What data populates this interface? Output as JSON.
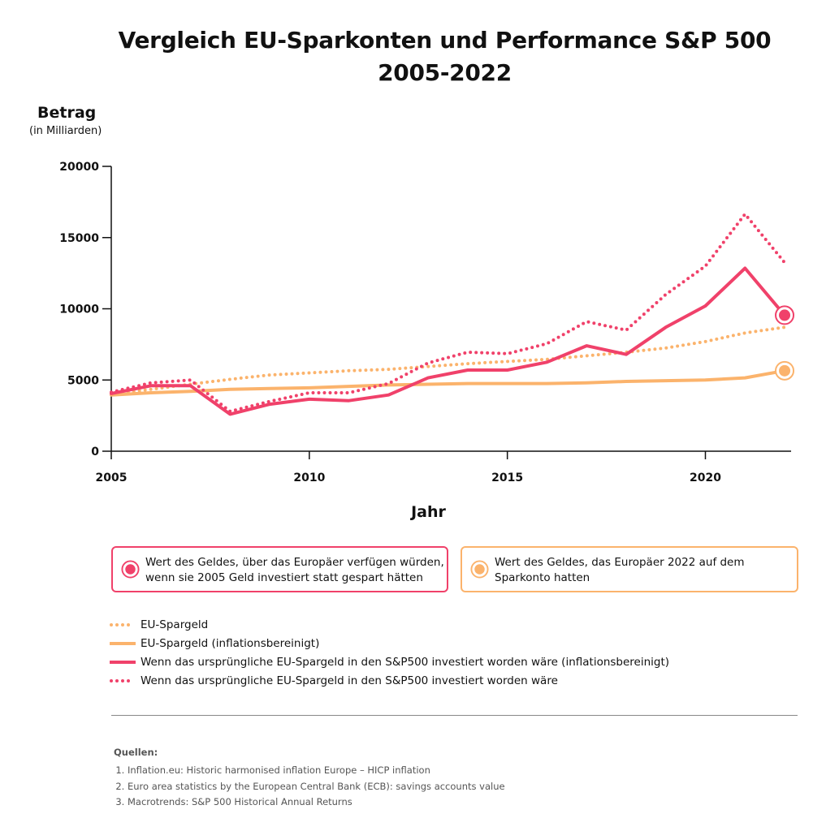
{
  "title_line1": "Vergleich EU-Sparkonten und Performance S&P 500",
  "title_line2": "2005-2022",
  "ylabel": "Betrag",
  "ylabel_sub": "(in Milliarden)",
  "xlabel": "Jahr",
  "colors": {
    "pink": "#f0416a",
    "orange": "#fbb36c"
  },
  "callouts": {
    "pink": "Wert des Geldes, über das Europäer verfügen würden, wenn sie 2005 Geld investiert statt gespart hätten",
    "orange": "Wert des Geldes, das Europäer 2022 auf dem Sparkonto hatten"
  },
  "legend": [
    "EU-Spargeld",
    "EU-Spargeld (inflationsbereinigt)",
    "Wenn das ursprüngliche EU-Spargeld in den S&P500 investiert worden wäre (inflationsbereinigt)",
    "Wenn das ursprüngliche EU-Spargeld in den S&P500 investiert worden wäre"
  ],
  "sources": {
    "heading": "Quellen:",
    "items": [
      "Inflation.eu: Historic harmonised inflation Europe – HICP inflation",
      "Euro area statistics by the European Central Bank (ECB): savings accounts value",
      "Macrotrends: S&P 500 Historical Annual Returns"
    ]
  },
  "chart_data": {
    "type": "line",
    "x": [
      2005,
      2006,
      2007,
      2008,
      2009,
      2010,
      2011,
      2012,
      2013,
      2014,
      2015,
      2016,
      2017,
      2018,
      2019,
      2020,
      2021,
      2022
    ],
    "xlim": [
      2005,
      2022
    ],
    "ylim": [
      0,
      20000
    ],
    "xticks": [
      2005,
      2010,
      2015,
      2020
    ],
    "yticks": [
      0,
      5000,
      10000,
      15000,
      20000
    ],
    "series": [
      {
        "name": "EU-Spargeld",
        "color": "#fbb36c",
        "style": "dotted",
        "values": [
          4000,
          4350,
          4700,
          5050,
          5350,
          5500,
          5650,
          5750,
          5950,
          6150,
          6300,
          6450,
          6700,
          6950,
          7250,
          7700,
          8300,
          8700
        ]
      },
      {
        "name": "EU-Spargeld (inflationsbereinigt)",
        "color": "#fbb36c",
        "style": "solid",
        "values": [
          3950,
          4100,
          4200,
          4350,
          4400,
          4450,
          4550,
          4650,
          4700,
          4750,
          4750,
          4750,
          4800,
          4900,
          4950,
          5000,
          5150,
          5650
        ]
      },
      {
        "name": "Wenn das ursprüngliche EU-Spargeld in den S&P500 investiert worden wäre (inflationsbereinigt)",
        "color": "#f0416a",
        "style": "solid",
        "values": [
          4050,
          4600,
          4600,
          2600,
          3300,
          3650,
          3550,
          3950,
          5150,
          5700,
          5700,
          6250,
          7400,
          6800,
          8700,
          10200,
          12850,
          9550
        ]
      },
      {
        "name": "Wenn das ursprüngliche EU-Spargeld in den S&P500 investiert worden wäre",
        "color": "#f0416a",
        "style": "dotted",
        "values": [
          4150,
          4800,
          5000,
          2800,
          3500,
          4100,
          4100,
          4750,
          6200,
          6950,
          6850,
          7550,
          9100,
          8500,
          11000,
          13000,
          16650,
          13250
        ]
      }
    ],
    "markers": [
      {
        "x": 2022,
        "y": 9550,
        "color": "#f0416a"
      },
      {
        "x": 2022,
        "y": 5650,
        "color": "#fbb36c"
      }
    ]
  }
}
